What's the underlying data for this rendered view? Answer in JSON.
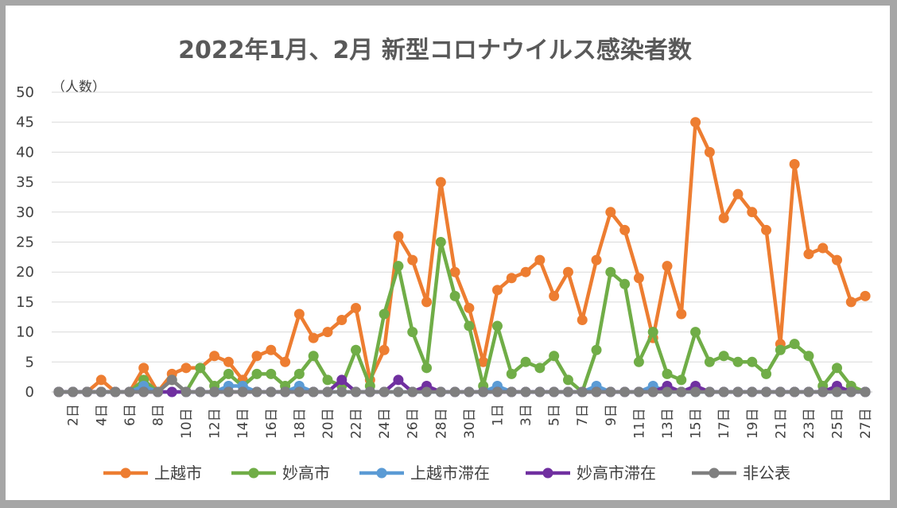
{
  "chart_data": {
    "type": "line",
    "title": "2022年1月、2月 新型コロナウイルス感染者数",
    "ylabel": "（人数）",
    "ylim": [
      0,
      50
    ],
    "yticks": [
      0,
      5,
      10,
      15,
      20,
      25,
      30,
      35,
      40,
      45,
      50
    ],
    "grid": true,
    "legend_position": "bottom",
    "x": [
      "1日",
      "2日",
      "3日",
      "4日",
      "5日",
      "6日",
      "7日",
      "8日",
      "9日",
      "10日",
      "11日",
      "12日",
      "13日",
      "14日",
      "15日",
      "16日",
      "17日",
      "18日",
      "19日",
      "20日",
      "21日",
      "22日",
      "23日",
      "24日",
      "25日",
      "26日",
      "27日",
      "28日",
      "29日",
      "30日",
      "31日",
      "1日",
      "2日",
      "3日",
      "4日",
      "5日",
      "6日",
      "7日",
      "8日",
      "9日",
      "10日",
      "11日",
      "12日",
      "13日",
      "14日",
      "15日",
      "16日",
      "17日",
      "18日",
      "19日",
      "20日",
      "21日",
      "22日",
      "23日",
      "24日",
      "25日",
      "26日",
      "27日"
    ],
    "x_tick_labels": [
      "2日",
      "4日",
      "6日",
      "8日",
      "10日",
      "12日",
      "14日",
      "16日",
      "18日",
      "20日",
      "22日",
      "24日",
      "26日",
      "28日",
      "30日",
      "1日",
      "3日",
      "5日",
      "7日",
      "9日",
      "11日",
      "13日",
      "15日",
      "17日",
      "19日",
      "21日",
      "23日",
      "25日",
      "27日"
    ],
    "series": [
      {
        "name": "上越市",
        "color": "#ed7d31",
        "values": [
          0,
          0,
          0,
          2,
          0,
          0,
          4,
          0,
          3,
          4,
          4,
          6,
          5,
          2,
          6,
          7,
          5,
          13,
          9,
          10,
          12,
          14,
          2,
          7,
          26,
          22,
          15,
          35,
          20,
          14,
          5,
          17,
          19,
          20,
          22,
          16,
          20,
          12,
          22,
          30,
          27,
          19,
          9,
          21,
          13,
          45,
          40,
          29,
          33,
          30,
          27,
          8,
          38,
          23,
          24,
          22,
          15,
          16
        ]
      },
      {
        "name": "妙高市",
        "color": "#70ad47",
        "values": [
          0,
          0,
          0,
          0,
          0,
          0,
          2,
          0,
          2,
          0,
          4,
          1,
          3,
          1,
          3,
          3,
          1,
          3,
          6,
          2,
          1,
          7,
          1,
          13,
          21,
          10,
          4,
          25,
          16,
          11,
          1,
          11,
          3,
          5,
          4,
          6,
          2,
          0,
          7,
          20,
          18,
          5,
          10,
          3,
          2,
          10,
          5,
          6,
          5,
          5,
          3,
          7,
          8,
          6,
          1,
          4,
          1,
          0
        ]
      },
      {
        "name": "上越市滞在",
        "color": "#5b9bd5",
        "values": [
          0,
          0,
          0,
          0,
          0,
          0,
          1,
          0,
          0,
          0,
          0,
          0,
          1,
          1,
          0,
          0,
          0,
          1,
          0,
          0,
          0,
          0,
          0,
          0,
          0,
          0,
          0,
          0,
          0,
          0,
          0,
          1,
          0,
          0,
          0,
          0,
          0,
          0,
          1,
          0,
          0,
          0,
          1,
          0,
          0,
          0,
          0,
          0,
          0,
          0,
          0,
          0,
          0,
          0,
          0,
          0,
          0,
          0
        ]
      },
      {
        "name": "妙高市滞在",
        "color": "#7030a0",
        "values": [
          0,
          0,
          0,
          0,
          0,
          0,
          0,
          0,
          0,
          0,
          0,
          0,
          0,
          0,
          0,
          0,
          0,
          0,
          0,
          0,
          2,
          0,
          0,
          0,
          2,
          0,
          1,
          0,
          0,
          0,
          0,
          0,
          0,
          0,
          0,
          0,
          0,
          0,
          0,
          0,
          0,
          0,
          0,
          1,
          0,
          1,
          0,
          0,
          0,
          0,
          0,
          0,
          0,
          0,
          0,
          1,
          0,
          0
        ]
      },
      {
        "name": "非公表",
        "color": "#7f7f7f",
        "values": [
          0,
          0,
          0,
          0,
          0,
          0,
          0,
          0,
          2,
          0,
          0,
          0,
          0,
          0,
          0,
          0,
          0,
          0,
          0,
          0,
          0,
          0,
          0,
          0,
          0,
          0,
          0,
          0,
          0,
          0,
          0,
          0,
          0,
          0,
          0,
          0,
          0,
          0,
          0,
          0,
          0,
          0,
          0,
          0,
          0,
          0,
          0,
          0,
          0,
          0,
          0,
          0,
          0,
          0,
          0,
          0,
          0,
          0
        ]
      }
    ]
  }
}
